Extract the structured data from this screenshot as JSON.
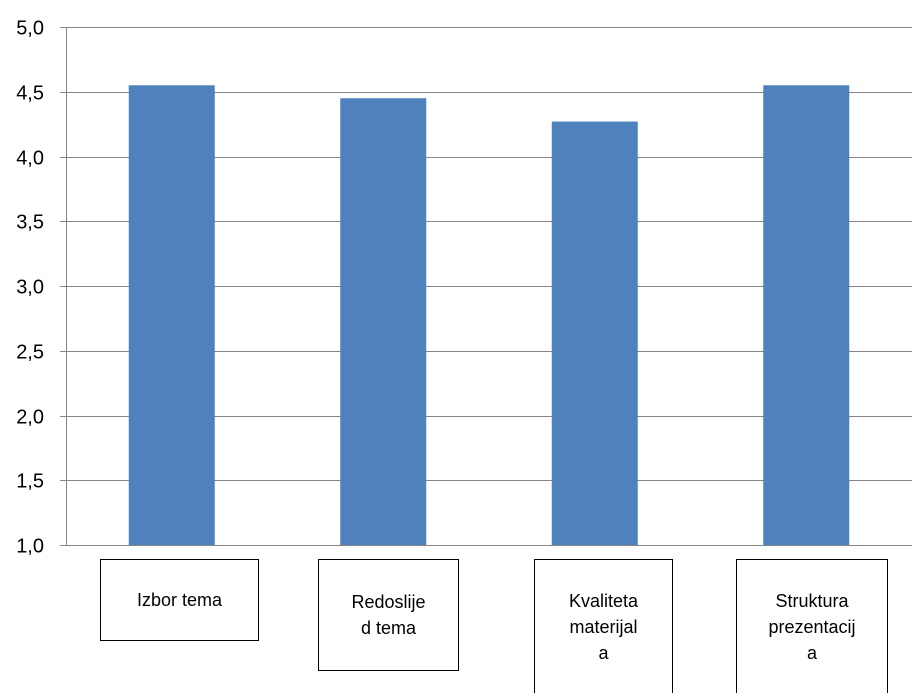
{
  "chart_data": {
    "type": "bar",
    "categories": [
      "Izbor tema",
      "Redoslijed tema",
      "Kvaliteta materijala",
      "Struktura prezentacija"
    ],
    "category_lines": [
      [
        "Izbor tema"
      ],
      [
        "Redoslije",
        "d tema"
      ],
      [
        "Kvaliteta",
        "materijal",
        "a"
      ],
      [
        "Struktura",
        "prezentacij",
        "a"
      ]
    ],
    "values": [
      4.55,
      4.45,
      4.27,
      4.55
    ],
    "ylim": [
      1.0,
      5.0
    ],
    "yticks": [
      "1,0",
      "1,5",
      "2,0",
      "2,5",
      "3,0",
      "3,5",
      "4,0",
      "4,5",
      "5,0"
    ],
    "ytick_values": [
      1.0,
      1.5,
      2.0,
      2.5,
      3.0,
      3.5,
      4.0,
      4.5,
      5.0
    ],
    "title": "",
    "xlabel": "",
    "ylabel": "",
    "grid": true,
    "legend": "none",
    "bar_color": "#4F81BD",
    "grid_color": "#868686"
  }
}
